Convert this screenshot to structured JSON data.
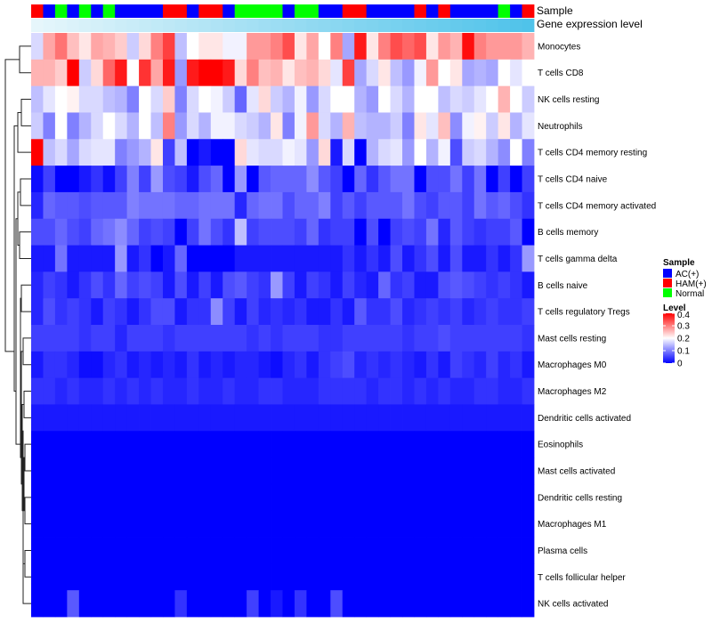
{
  "chart_data": {
    "type": "heatmap",
    "title": "",
    "annotation_tracks": [
      {
        "name": "Sample",
        "type": "categorical"
      },
      {
        "name": "Gene expression level",
        "type": "continuous"
      }
    ],
    "sample_groups": [
      "H",
      "A",
      "N",
      "A",
      "N",
      "A",
      "N",
      "A",
      "A",
      "A",
      "A",
      "H",
      "H",
      "A",
      "H",
      "H",
      "A",
      "N",
      "N",
      "N",
      "N",
      "A",
      "N",
      "N",
      "A",
      "A",
      "H",
      "H",
      "A",
      "A",
      "A",
      "A",
      "H",
      "A",
      "H",
      "A",
      "A",
      "A",
      "A",
      "N",
      "A",
      "H"
    ],
    "gene_expression_level": [
      0.0,
      0.024,
      0.049,
      0.073,
      0.098,
      0.122,
      0.146,
      0.171,
      0.195,
      0.22,
      0.244,
      0.268,
      0.293,
      0.317,
      0.341,
      0.366,
      0.39,
      0.415,
      0.439,
      0.463,
      0.488,
      0.512,
      0.537,
      0.561,
      0.585,
      0.61,
      0.634,
      0.659,
      0.683,
      0.707,
      0.732,
      0.756,
      0.78,
      0.805,
      0.829,
      0.854,
      0.878,
      0.902,
      0.927,
      0.951,
      0.976,
      1.0
    ],
    "rows": [
      {
        "label": "Monocytes",
        "values": [
          0.17,
          0.27,
          0.31,
          0.25,
          0.22,
          0.27,
          0.26,
          0.24,
          0.16,
          0.23,
          0.3,
          0.35,
          0.15,
          0.2,
          0.22,
          0.22,
          0.19,
          0.19,
          0.28,
          0.28,
          0.3,
          0.34,
          0.22,
          0.27,
          0.2,
          0.3,
          0.13,
          0.38,
          0.22,
          0.3,
          0.34,
          0.32,
          0.34,
          0.22,
          0.28,
          0.26,
          0.39,
          0.3,
          0.28,
          0.28,
          0.28,
          0.26
        ]
      },
      {
        "label": "T cells CD8",
        "values": [
          0.26,
          0.26,
          0.24,
          0.4,
          0.16,
          0.23,
          0.32,
          0.38,
          0.2,
          0.36,
          0.27,
          0.38,
          0.12,
          0.38,
          0.42,
          0.4,
          0.38,
          0.23,
          0.3,
          0.25,
          0.26,
          0.22,
          0.25,
          0.26,
          0.23,
          0.18,
          0.35,
          0.13,
          0.17,
          0.22,
          0.15,
          0.12,
          0.19,
          0.28,
          0.2,
          0.22,
          0.13,
          0.14,
          0.13,
          0.2,
          0.18,
          0.2
        ]
      },
      {
        "label": "NK cells resting",
        "values": [
          0.15,
          0.18,
          0.2,
          0.21,
          0.17,
          0.17,
          0.15,
          0.14,
          0.1,
          0.2,
          0.17,
          0.24,
          0.1,
          0.17,
          0.2,
          0.19,
          0.16,
          0.08,
          0.18,
          0.23,
          0.16,
          0.14,
          0.19,
          0.12,
          0.17,
          0.2,
          0.2,
          0.14,
          0.12,
          0.2,
          0.17,
          0.14,
          0.2,
          0.2,
          0.15,
          0.17,
          0.16,
          0.18,
          0.2,
          0.26,
          0.2,
          0.16
        ]
      },
      {
        "label": "Neutrophils",
        "values": [
          0.16,
          0.1,
          0.2,
          0.1,
          0.14,
          0.17,
          0.2,
          0.17,
          0.14,
          0.2,
          0.15,
          0.3,
          0.12,
          0.17,
          0.14,
          0.19,
          0.19,
          0.17,
          0.16,
          0.14,
          0.22,
          0.1,
          0.19,
          0.28,
          0.17,
          0.14,
          0.26,
          0.15,
          0.14,
          0.14,
          0.16,
          0.1,
          0.22,
          0.18,
          0.25,
          0.11,
          0.19,
          0.21,
          0.16,
          0.22,
          0.14,
          0.18
        ]
      },
      {
        "label": "T cells CD4 memory resting",
        "values": [
          0.4,
          0.15,
          0.17,
          0.13,
          0.17,
          0.18,
          0.18,
          0.1,
          0.12,
          0.14,
          0.22,
          0.05,
          0.15,
          0.0,
          0.02,
          0.0,
          0.0,
          0.23,
          0.18,
          0.17,
          0.17,
          0.19,
          0.18,
          0.12,
          0.23,
          0.02,
          0.17,
          0.0,
          0.14,
          0.17,
          0.18,
          0.12,
          0.2,
          0.14,
          0.19,
          0.06,
          0.16,
          0.17,
          0.14,
          0.11,
          0.2,
          0.1
        ]
      },
      {
        "label": "T cells CD4 naive",
        "values": [
          0.01,
          0.05,
          0.0,
          0.0,
          0.02,
          0.04,
          0.01,
          0.05,
          0.1,
          0.05,
          0.12,
          0.06,
          0.05,
          0.02,
          0.06,
          0.08,
          0.0,
          0.12,
          0.0,
          0.07,
          0.08,
          0.08,
          0.08,
          0.11,
          0.07,
          0.05,
          0.0,
          0.08,
          0.04,
          0.07,
          0.09,
          0.09,
          0.0,
          0.06,
          0.06,
          0.09,
          0.05,
          0.09,
          0.0,
          0.05,
          0.0,
          0.05
        ]
      },
      {
        "label": "T cells CD4 memory activated",
        "values": [
          0.03,
          0.08,
          0.07,
          0.07,
          0.06,
          0.07,
          0.07,
          0.07,
          0.1,
          0.09,
          0.09,
          0.09,
          0.08,
          0.08,
          0.09,
          0.09,
          0.09,
          0.03,
          0.08,
          0.09,
          0.09,
          0.06,
          0.08,
          0.08,
          0.1,
          0.05,
          0.07,
          0.05,
          0.07,
          0.07,
          0.07,
          0.09,
          0.06,
          0.05,
          0.07,
          0.07,
          0.05,
          0.09,
          0.07,
          0.08,
          0.06,
          0.04
        ]
      },
      {
        "label": "B cells memory",
        "values": [
          0.06,
          0.06,
          0.08,
          0.06,
          0.05,
          0.08,
          0.09,
          0.11,
          0.08,
          0.05,
          0.06,
          0.05,
          0.0,
          0.05,
          0.09,
          0.06,
          0.04,
          0.15,
          0.05,
          0.06,
          0.06,
          0.06,
          0.05,
          0.08,
          0.04,
          0.05,
          0.05,
          0.0,
          0.06,
          0.0,
          0.05,
          0.06,
          0.05,
          0.09,
          0.03,
          0.07,
          0.05,
          0.04,
          0.05,
          0.05,
          0.07,
          0.0
        ]
      },
      {
        "label": "T cells gamma delta",
        "values": [
          0.02,
          0.02,
          0.09,
          0.02,
          0.02,
          0.02,
          0.02,
          0.12,
          0.02,
          0.04,
          0.0,
          0.02,
          0.08,
          0.0,
          0.0,
          0.0,
          0.0,
          0.02,
          0.02,
          0.02,
          0.02,
          0.02,
          0.02,
          0.02,
          0.02,
          0.02,
          0.04,
          0.02,
          0.04,
          0.02,
          0.06,
          0.02,
          0.04,
          0.06,
          0.02,
          0.06,
          0.02,
          0.02,
          0.04,
          0.02,
          0.04,
          0.12
        ]
      },
      {
        "label": "B cells naive",
        "values": [
          0.03,
          0.05,
          0.04,
          0.02,
          0.04,
          0.06,
          0.04,
          0.08,
          0.05,
          0.06,
          0.05,
          0.02,
          0.06,
          0.02,
          0.05,
          0.02,
          0.06,
          0.07,
          0.05,
          0.04,
          0.12,
          0.05,
          0.02,
          0.05,
          0.04,
          0.02,
          0.05,
          0.03,
          0.02,
          0.08,
          0.04,
          0.05,
          0.02,
          0.02,
          0.06,
          0.07,
          0.06,
          0.05,
          0.04,
          0.05,
          0.04,
          0.02
        ]
      },
      {
        "label": "T cells regulatory  Tregs",
        "values": [
          0.03,
          0.06,
          0.04,
          0.05,
          0.04,
          0.02,
          0.05,
          0.04,
          0.02,
          0.04,
          0.06,
          0.06,
          0.02,
          0.04,
          0.04,
          0.11,
          0.05,
          0.02,
          0.05,
          0.03,
          0.04,
          0.03,
          0.04,
          0.02,
          0.02,
          0.04,
          0.02,
          0.07,
          0.04,
          0.04,
          0.06,
          0.03,
          0.04,
          0.05,
          0.04,
          0.05,
          0.03,
          0.04,
          0.05,
          0.04,
          0.04,
          0.05
        ]
      },
      {
        "label": "Mast cells resting",
        "values": [
          0.05,
          0.05,
          0.05,
          0.05,
          0.04,
          0.05,
          0.05,
          0.03,
          0.05,
          0.05,
          0.05,
          0.04,
          0.05,
          0.05,
          0.05,
          0.05,
          0.05,
          0.05,
          0.04,
          0.05,
          0.04,
          0.05,
          0.05,
          0.05,
          0.04,
          0.04,
          0.05,
          0.05,
          0.05,
          0.05,
          0.05,
          0.04,
          0.05,
          0.05,
          0.06,
          0.05,
          0.05,
          0.05,
          0.05,
          0.05,
          0.05,
          0.04
        ]
      },
      {
        "label": "Macrophages M0",
        "values": [
          0.02,
          0.04,
          0.04,
          0.03,
          0.01,
          0.01,
          0.03,
          0.04,
          0.02,
          0.03,
          0.02,
          0.03,
          0.02,
          0.04,
          0.02,
          0.03,
          0.02,
          0.03,
          0.03,
          0.02,
          0.01,
          0.03,
          0.04,
          0.02,
          0.04,
          0.05,
          0.06,
          0.03,
          0.04,
          0.03,
          0.04,
          0.03,
          0.02,
          0.04,
          0.02,
          0.05,
          0.04,
          0.03,
          0.05,
          0.03,
          0.04,
          0.02
        ]
      },
      {
        "label": "Macrophages M2",
        "values": [
          0.04,
          0.04,
          0.03,
          0.04,
          0.03,
          0.03,
          0.04,
          0.03,
          0.04,
          0.03,
          0.04,
          0.03,
          0.03,
          0.04,
          0.03,
          0.03,
          0.04,
          0.03,
          0.03,
          0.04,
          0.04,
          0.03,
          0.03,
          0.03,
          0.04,
          0.04,
          0.04,
          0.04,
          0.03,
          0.04,
          0.04,
          0.03,
          0.04,
          0.03,
          0.04,
          0.03,
          0.03,
          0.04,
          0.04,
          0.03,
          0.03,
          0.04
        ]
      },
      {
        "label": "Dendritic cells activated",
        "values": [
          0.02,
          0.02,
          0.02,
          0.02,
          0.02,
          0.02,
          0.02,
          0.02,
          0.02,
          0.02,
          0.02,
          0.02,
          0.02,
          0.02,
          0.02,
          0.02,
          0.02,
          0.02,
          0.02,
          0.02,
          0.02,
          0.02,
          0.02,
          0.02,
          0.02,
          0.02,
          0.02,
          0.02,
          0.02,
          0.02,
          0.02,
          0.02,
          0.02,
          0.02,
          0.02,
          0.02,
          0.02,
          0.02,
          0.02,
          0.02,
          0.02,
          0.02
        ]
      },
      {
        "label": "Eosinophils",
        "values": [
          0,
          0,
          0,
          0,
          0,
          0,
          0,
          0,
          0,
          0,
          0,
          0,
          0,
          0,
          0,
          0,
          0,
          0,
          0,
          0,
          0,
          0,
          0,
          0,
          0,
          0,
          0,
          0,
          0,
          0,
          0,
          0,
          0,
          0,
          0,
          0,
          0,
          0,
          0,
          0,
          0,
          0
        ]
      },
      {
        "label": "Mast cells activated",
        "values": [
          0,
          0,
          0,
          0,
          0,
          0,
          0,
          0,
          0,
          0,
          0,
          0,
          0,
          0,
          0,
          0,
          0,
          0,
          0,
          0,
          0,
          0,
          0,
          0,
          0,
          0,
          0,
          0,
          0,
          0,
          0,
          0,
          0,
          0,
          0,
          0,
          0,
          0,
          0,
          0,
          0,
          0
        ]
      },
      {
        "label": "Dendritic cells resting",
        "values": [
          0,
          0,
          0,
          0,
          0,
          0,
          0,
          0,
          0,
          0,
          0,
          0,
          0,
          0,
          0,
          0,
          0,
          0,
          0,
          0,
          0,
          0,
          0,
          0,
          0,
          0,
          0,
          0,
          0,
          0,
          0,
          0,
          0,
          0,
          0,
          0,
          0,
          0,
          0,
          0,
          0,
          0
        ]
      },
      {
        "label": "Macrophages M1",
        "values": [
          0,
          0,
          0,
          0,
          0,
          0,
          0,
          0,
          0,
          0,
          0,
          0,
          0,
          0,
          0,
          0,
          0,
          0,
          0,
          0,
          0,
          0,
          0,
          0,
          0,
          0,
          0,
          0,
          0,
          0,
          0,
          0,
          0,
          0,
          0,
          0,
          0,
          0,
          0,
          0,
          0,
          0
        ]
      },
      {
        "label": "Plasma cells",
        "values": [
          0,
          0,
          0,
          0,
          0,
          0,
          0,
          0,
          0,
          0,
          0,
          0,
          0,
          0,
          0,
          0,
          0,
          0,
          0,
          0,
          0,
          0,
          0,
          0,
          0,
          0,
          0,
          0,
          0,
          0,
          0,
          0,
          0,
          0,
          0,
          0,
          0,
          0,
          0,
          0,
          0,
          0
        ]
      },
      {
        "label": "T cells follicular helper",
        "values": [
          0,
          0,
          0,
          0,
          0,
          0,
          0,
          0,
          0,
          0,
          0,
          0,
          0,
          0,
          0,
          0,
          0,
          0,
          0,
          0,
          0,
          0,
          0,
          0,
          0,
          0,
          0,
          0,
          0,
          0,
          0,
          0,
          0,
          0,
          0,
          0,
          0,
          0,
          0,
          0,
          0,
          0
        ]
      },
      {
        "label": "NK cells activated",
        "values": [
          0,
          0,
          0,
          0.07,
          0,
          0,
          0,
          0,
          0,
          0,
          0,
          0,
          0.04,
          0,
          0,
          0,
          0,
          0,
          0.05,
          0,
          0.02,
          0,
          0.04,
          0,
          0,
          0.06,
          0,
          0,
          0,
          0,
          0,
          0,
          0,
          0,
          0,
          0,
          0,
          0,
          0,
          0,
          0,
          0
        ]
      }
    ],
    "color_scale": {
      "min": 0,
      "max": 0.4,
      "colors": [
        "#0000ff",
        "#ffffff",
        "#ff0000"
      ],
      "ticks": [
        0.4,
        0.3,
        0.2,
        0.1,
        0
      ]
    },
    "legends": {
      "sample": {
        "title": "Sample",
        "entries": [
          {
            "code": "A",
            "label": "AC(+)",
            "color": "#0000ff"
          },
          {
            "code": "H",
            "label": "HAM(+)",
            "color": "#ff0000"
          },
          {
            "code": "N",
            "label": "Normal",
            "color": "#00ff00"
          }
        ]
      },
      "level": {
        "title": "Level"
      }
    },
    "dendrogram": "row-clustering",
    "gene_expression_colors": [
      "#e6f6fb",
      "#4fc3ea"
    ]
  }
}
